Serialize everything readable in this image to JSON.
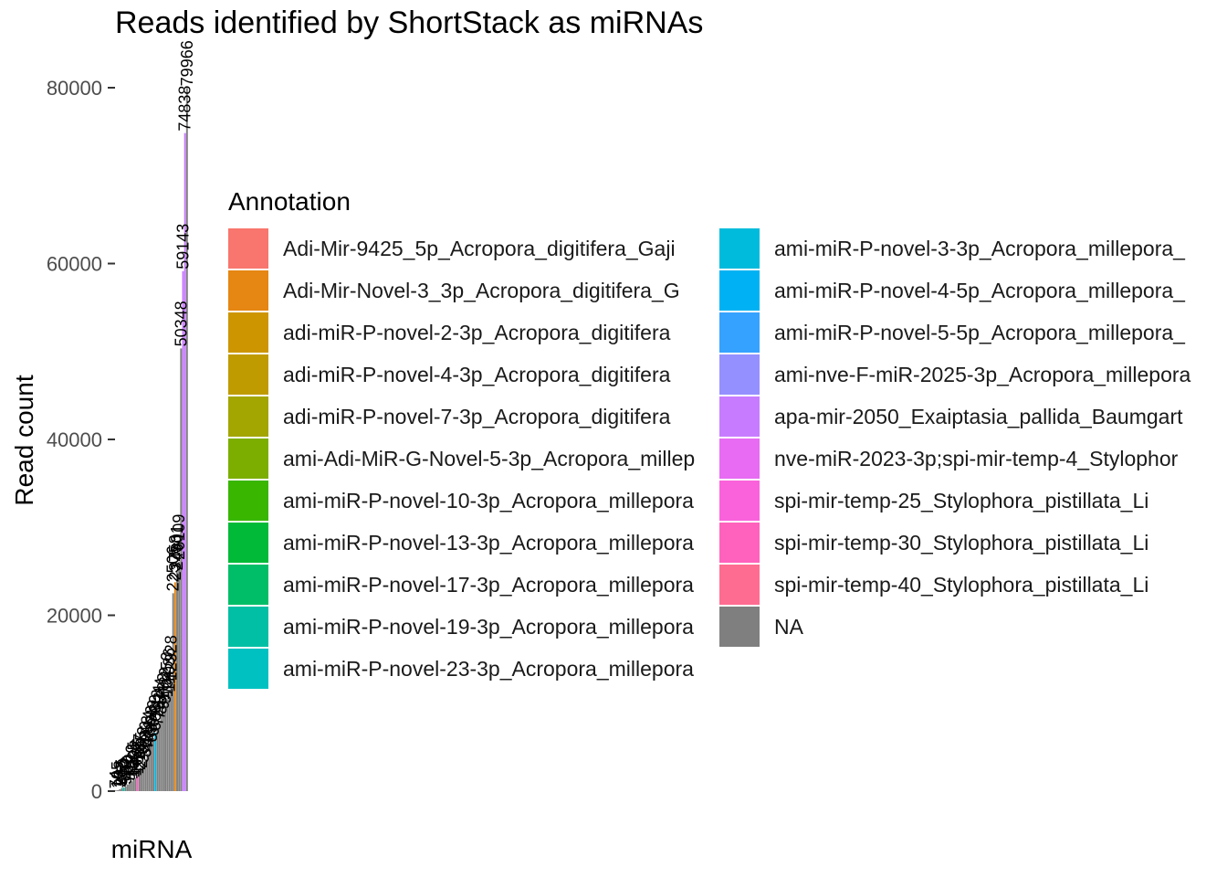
{
  "chart_data": {
    "type": "bar",
    "title": "Reads identified by ShortStack as miRNAs",
    "xlabel": "miRNA",
    "ylabel": "Read count",
    "ylim": [
      0,
      82000
    ],
    "yticks": [
      0,
      20000,
      40000,
      60000,
      80000
    ],
    "ytick_labels": [
      "0",
      "20000",
      "40000",
      "60000",
      "80000"
    ],
    "grid": false,
    "legend_title": "Annotation",
    "legend_position": "right",
    "bar_labels_rotation": "vertical",
    "bars": [
      {
        "value": 74,
        "label": "74",
        "color": "#808080"
      },
      {
        "value": 105,
        "label": "105",
        "color": "#808080"
      },
      {
        "value": 208,
        "label": "208",
        "color": "#808080"
      },
      {
        "value": 365,
        "label": "365",
        "color": "#808080"
      },
      {
        "value": 410,
        "label": "410",
        "color": "#00C1AA"
      },
      {
        "value": 552,
        "label": "552",
        "color": "#808080"
      },
      {
        "value": 760,
        "label": "760",
        "color": "#808080"
      },
      {
        "value": 912,
        "label": "912",
        "color": "#808080"
      },
      {
        "value": 1120,
        "label": "1120",
        "color": "#808080"
      },
      {
        "value": 1305,
        "label": "1305",
        "color": "#808080"
      },
      {
        "value": 1482,
        "label": "1482",
        "color": "#808080"
      },
      {
        "value": 1696,
        "label": "1696",
        "color": "#FF61C3"
      },
      {
        "value": 2187,
        "label": "2187",
        "color": "#808080"
      },
      {
        "value": 2405,
        "label": "2405",
        "color": "#808080"
      },
      {
        "value": 3012,
        "label": "3012",
        "color": "#808080"
      },
      {
        "value": 3630,
        "label": "3630",
        "color": "#808080"
      },
      {
        "value": 4258,
        "label": "4258",
        "color": "#808080"
      },
      {
        "value": 4814,
        "label": "4814",
        "color": "#808080"
      },
      {
        "value": 5393,
        "label": "5393",
        "color": "#808080"
      },
      {
        "value": 6049,
        "label": "6049",
        "color": "#808080"
      },
      {
        "value": 6630,
        "label": "6630",
        "color": "#00B9E3"
      },
      {
        "value": 7218,
        "label": "7218",
        "color": "#808080"
      },
      {
        "value": 7921,
        "label": "7921",
        "color": "#808080"
      },
      {
        "value": 8544,
        "label": "8544",
        "color": "#808080"
      },
      {
        "value": 9103,
        "label": "9103",
        "color": "#808080"
      },
      {
        "value": 9722,
        "label": "9722",
        "color": "#808080"
      },
      {
        "value": 10450,
        "label": "10450",
        "color": "#808080"
      },
      {
        "value": 11036,
        "label": "11036",
        "color": "#808080"
      },
      {
        "value": 12328,
        "label": "12328",
        "color": "#808080"
      },
      {
        "value": 22506,
        "label": "22506",
        "color": "#808080"
      },
      {
        "value": 23758,
        "label": "23758",
        "color": "#E68613"
      },
      {
        "value": 24901,
        "label": "24901",
        "color": "#808080"
      },
      {
        "value": 26109,
        "label": "26109",
        "color": "#808080"
      },
      {
        "value": 50348,
        "label": "50348",
        "color": "#808080"
      },
      {
        "value": 59143,
        "label": "59143",
        "color": "#C77CFF"
      },
      {
        "value": 74838,
        "label": "74838",
        "color": "#C77CFF"
      },
      {
        "value": 79966,
        "label": "79966",
        "color": "#808080"
      }
    ],
    "legend": [
      {
        "label": "Adi-Mir-9425_5p_Acropora_digitifera_Gaji",
        "color": "#F8766D"
      },
      {
        "label": "Adi-Mir-Novel-3_3p_Acropora_digitifera_G",
        "color": "#E68613"
      },
      {
        "label": "adi-miR-P-novel-2-3p_Acropora_digitifera",
        "color": "#CD9600"
      },
      {
        "label": "adi-miR-P-novel-4-3p_Acropora_digitifera",
        "color": "#C09B00"
      },
      {
        "label": "adi-miR-P-novel-7-3p_Acropora_digitifera",
        "color": "#A3A500"
      },
      {
        "label": "ami-Adi-MiR-G-Novel-5-3p_Acropora_millep",
        "color": "#7CAE00"
      },
      {
        "label": "ami-miR-P-novel-10-3p_Acropora_millepora",
        "color": "#39B600"
      },
      {
        "label": "ami-miR-P-novel-13-3p_Acropora_millepora",
        "color": "#00BA38"
      },
      {
        "label": "ami-miR-P-novel-17-3p_Acropora_millepora",
        "color": "#00BE67"
      },
      {
        "label": "ami-miR-P-novel-19-3p_Acropora_millepora",
        "color": "#00BFA4"
      },
      {
        "label": "ami-miR-P-novel-23-3p_Acropora_millepora",
        "color": "#00C1C1"
      },
      {
        "label": "ami-miR-P-novel-3-3p_Acropora_millepora_",
        "color": "#00BBDB"
      },
      {
        "label": "ami-miR-P-novel-4-5p_Acropora_millepora_",
        "color": "#00B2F3"
      },
      {
        "label": "ami-miR-P-novel-5-5p_Acropora_millepora_",
        "color": "#35A2FF"
      },
      {
        "label": "ami-nve-F-miR-2025-3p_Acropora_millepora",
        "color": "#9590FF"
      },
      {
        "label": "apa-mir-2050_Exaiptasia_pallida_Baumgart",
        "color": "#C77CFF"
      },
      {
        "label": "nve-miR-2023-3p;spi-mir-temp-4_Stylophor",
        "color": "#E76BF3"
      },
      {
        "label": "spi-mir-temp-25_Stylophora_pistillata_Li",
        "color": "#FA62DB"
      },
      {
        "label": "spi-mir-temp-30_Stylophora_pistillata_Li",
        "color": "#FF62BC"
      },
      {
        "label": "spi-mir-temp-40_Stylophora_pistillata_Li",
        "color": "#FF6C91"
      },
      {
        "label": "NA",
        "color": "#7F7F7F"
      }
    ]
  }
}
